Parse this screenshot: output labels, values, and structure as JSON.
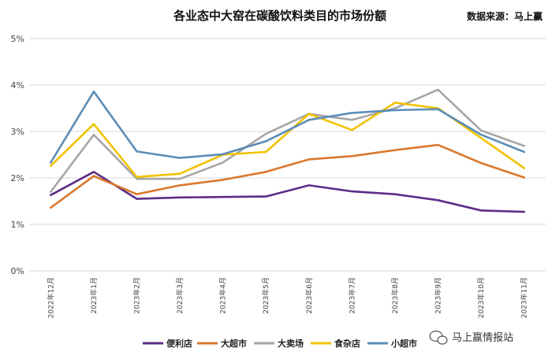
{
  "chart_data": {
    "type": "line",
    "title": "各业态中大窑在碳酸饮料类目的市场份额",
    "source": "数据来源：马上赢",
    "xlabel": "",
    "ylabel": "",
    "x": [
      "2022年12月",
      "2023年1月",
      "2023年2月",
      "2023年3月",
      "2023年4月",
      "2023年5月",
      "2023年6月",
      "2023年7月",
      "2023年8月",
      "2023年9月",
      "2023年10月",
      "2023年11月"
    ],
    "yticks": [
      "0%",
      "1%",
      "2%",
      "3%",
      "4%",
      "5%"
    ],
    "ylim": [
      0,
      5
    ],
    "grid": true,
    "legend_position": "bottom",
    "series": [
      {
        "name": "便利店",
        "color": "#5b2d86",
        "values": [
          1.63,
          2.13,
          1.55,
          1.58,
          1.59,
          1.6,
          1.84,
          1.71,
          1.65,
          1.52,
          1.3,
          1.27
        ]
      },
      {
        "name": "大超市",
        "color": "#d9782d",
        "values": [
          1.36,
          2.04,
          1.65,
          1.84,
          1.96,
          2.13,
          2.4,
          2.47,
          2.6,
          2.71,
          2.32,
          2.01
        ]
      },
      {
        "name": "大卖场",
        "color": "#a6a6a6",
        "values": [
          1.7,
          2.93,
          1.98,
          1.98,
          2.33,
          2.95,
          3.38,
          3.25,
          3.5,
          3.9,
          3.02,
          2.69
        ]
      },
      {
        "name": "食杂店",
        "color": "#f2c200",
        "values": [
          2.26,
          3.16,
          2.02,
          2.09,
          2.5,
          2.56,
          3.38,
          3.03,
          3.62,
          3.5,
          2.86,
          2.21
        ]
      },
      {
        "name": "小超市",
        "color": "#5b8db8",
        "values": [
          2.33,
          3.86,
          2.57,
          2.43,
          2.51,
          2.79,
          3.25,
          3.4,
          3.46,
          3.48,
          2.93,
          2.56
        ]
      }
    ]
  },
  "watermark": {
    "text": "马上赢情报站",
    "icon": "wechat-icon"
  }
}
